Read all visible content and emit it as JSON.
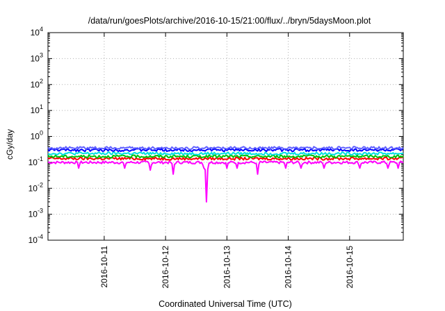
{
  "chart_data": {
    "type": "line",
    "title": "/data/run/goesPlots/archive/2016-10-15/21:00/flux/../bryn/5daysMoon.plot",
    "xlabel": "Coordinated Universal Time (UTC)",
    "ylabel": "cGy/day",
    "y_scale": "log",
    "ylim": [
      0.0001,
      10000
    ],
    "y_ticks": [
      {
        "value": 0.0001,
        "base": "10",
        "exp": "-4"
      },
      {
        "value": 0.001,
        "base": "10",
        "exp": "-3"
      },
      {
        "value": 0.01,
        "base": "10",
        "exp": "-2"
      },
      {
        "value": 0.1,
        "base": "10",
        "exp": "-1"
      },
      {
        "value": 1,
        "base": "10",
        "exp": "0"
      },
      {
        "value": 10,
        "base": "10",
        "exp": "1"
      },
      {
        "value": 100,
        "base": "10",
        "exp": "2"
      },
      {
        "value": 1000,
        "base": "10",
        "exp": "3"
      },
      {
        "value": 10000,
        "base": "10",
        "exp": "4"
      }
    ],
    "xlim": [
      "2016-10-10 02:00",
      "2016-10-15 21:00"
    ],
    "x_ticks": [
      "2016-10-11",
      "2016-10-12",
      "2016-10-13",
      "2016-10-14",
      "2016-10-15"
    ],
    "grid": true,
    "legend": "none",
    "series": [
      {
        "color": "#ff00ff",
        "base": 0.1,
        "dips": [
          {
            "x": "2016-10-10 14:00",
            "y": 0.06
          },
          {
            "x": "2016-10-11 08:00",
            "y": 0.06
          },
          {
            "x": "2016-10-11 18:00",
            "y": 0.05
          },
          {
            "x": "2016-10-12 03:00",
            "y": 0.035
          },
          {
            "x": "2016-10-12 15:00",
            "y": 0.06
          },
          {
            "x": "2016-10-12 16:00",
            "y": 0.003
          },
          {
            "x": "2016-10-13 00:00",
            "y": 0.06
          },
          {
            "x": "2016-10-13 04:00",
            "y": 0.06
          },
          {
            "x": "2016-10-13 12:00",
            "y": 0.035
          },
          {
            "x": "2016-10-13 23:00",
            "y": 0.06
          },
          {
            "x": "2016-10-14 05:00",
            "y": 0.06
          },
          {
            "x": "2016-10-14 14:00",
            "y": 0.06
          },
          {
            "x": "2016-10-15 04:00",
            "y": 0.06
          },
          {
            "x": "2016-10-15 15:00",
            "y": 0.06
          },
          {
            "x": "2016-10-15 19:00",
            "y": 0.06
          }
        ]
      },
      {
        "color": "#ff0000",
        "base": 0.14
      },
      {
        "color": "#00c000",
        "base": 0.17
      },
      {
        "color": "#00e0e0",
        "base": 0.22
      },
      {
        "color": "#0000ff",
        "base": 0.3
      },
      {
        "color": "#6060ff",
        "base": 0.36
      }
    ]
  }
}
